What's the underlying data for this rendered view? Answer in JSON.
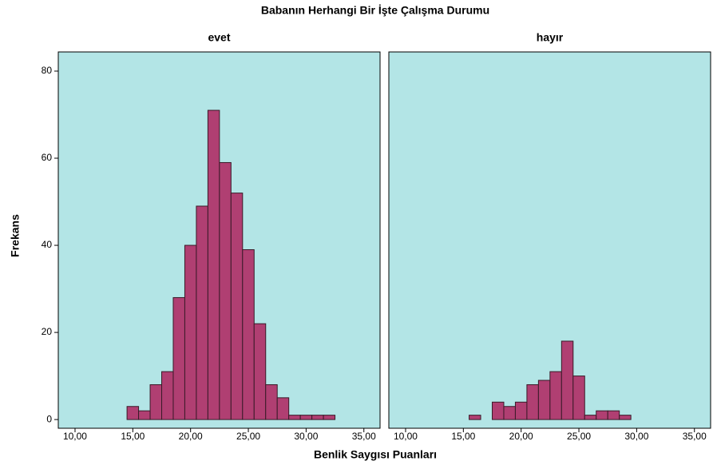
{
  "chart_data": {
    "type": "histogram",
    "title": "Babanın Herhangi Bir İşte Çalışma Durumu",
    "xlabel": "Benlik Saygısı Puanları",
    "ylabel": "Frekans",
    "color": "#b03f72",
    "panel_color": "#b3e5e6",
    "bins": [
      14.5,
      15.5,
      16.5,
      17.5,
      18.5,
      19.5,
      20.5,
      21.5,
      22.5,
      23.5,
      24.5,
      25.5,
      26.5,
      27.5,
      28.5,
      29.5,
      30.5,
      31.5,
      32.5
    ],
    "series": [
      {
        "name": "evet",
        "values": [
          3,
          2,
          8,
          11,
          28,
          40,
          49,
          71,
          59,
          52,
          39,
          22,
          8,
          5,
          1,
          1,
          1,
          1
        ]
      },
      {
        "name": "hayır",
        "values": [
          0,
          1,
          0,
          4,
          3,
          4,
          8,
          9,
          11,
          18,
          10,
          1,
          2,
          2,
          1,
          0,
          0,
          0
        ]
      }
    ],
    "xlim": [
      8.55,
      36.4
    ],
    "xticks": [
      {
        "value": 10,
        "label": "10,00"
      },
      {
        "value": 15,
        "label": "15,00"
      },
      {
        "value": 20,
        "label": "20,00"
      },
      {
        "value": 25,
        "label": "25,00"
      },
      {
        "value": 30,
        "label": "30,00"
      },
      {
        "value": 35,
        "label": "35,00"
      }
    ],
    "ylim": [
      -2,
      84.4
    ],
    "yticks": [
      0,
      20,
      40,
      60,
      80
    ]
  }
}
